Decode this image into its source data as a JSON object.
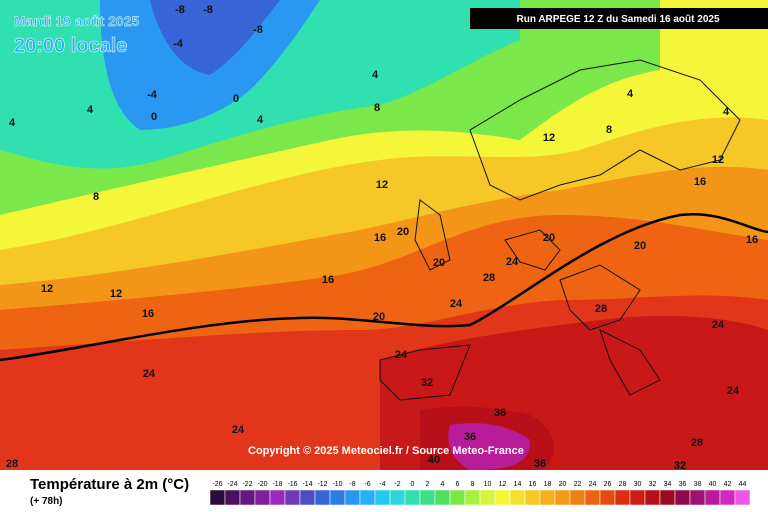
{
  "header": {
    "date": "Mardi 19 août 2025",
    "time": "20:00 locale",
    "run": "Run ARPEGE 12 Z du Samedi 16 août 2025"
  },
  "copyright": "Copyright © 2025 Meteociel.fr / Source Meteo-France",
  "legend": {
    "title": "Température à 2m (°C)",
    "lead_time": "(+ 78h)",
    "scale": {
      "ticks": [
        -26,
        -24,
        -22,
        -20,
        -18,
        -16,
        -14,
        -12,
        -10,
        -8,
        -6,
        -4,
        -2,
        0,
        2,
        4,
        6,
        8,
        10,
        12,
        14,
        16,
        18,
        20,
        22,
        24,
        26,
        28,
        30,
        32,
        34,
        36,
        38,
        40,
        42,
        44
      ],
      "colors": [
        "#2d0a3c",
        "#4a0f5e",
        "#661780",
        "#7f1f9c",
        "#9a2bb8",
        "#6c3cb5",
        "#4b4fc4",
        "#3764d6",
        "#2c7ee6",
        "#2a97f0",
        "#27b0f5",
        "#25c8f0",
        "#2ad8d8",
        "#30e0b0",
        "#3ae08a",
        "#4fe060",
        "#7ae84a",
        "#a8f040",
        "#d4f53c",
        "#f5f53a",
        "#f5e030",
        "#f5c828",
        "#f5b020",
        "#f59a18",
        "#f08010",
        "#ec6410",
        "#e64a10",
        "#de2e10",
        "#d01a12",
        "#b80f18",
        "#9c0a22",
        "#8a0a4a",
        "#9c1270",
        "#b81c98",
        "#d028c0",
        "#ee55e8"
      ]
    }
  },
  "map": {
    "contour_labels": [
      -8,
      -8,
      -8,
      -4,
      -4,
      0,
      0,
      4,
      4,
      8,
      4,
      4,
      8,
      12,
      12,
      12,
      16,
      16,
      16,
      20,
      20,
      20,
      20,
      20,
      28,
      24,
      24,
      24,
      24,
      28,
      24,
      32,
      36,
      40,
      36,
      36,
      28,
      24,
      24,
      28,
      32,
      12,
      8,
      12,
      16,
      16,
      4,
      4
    ]
  }
}
